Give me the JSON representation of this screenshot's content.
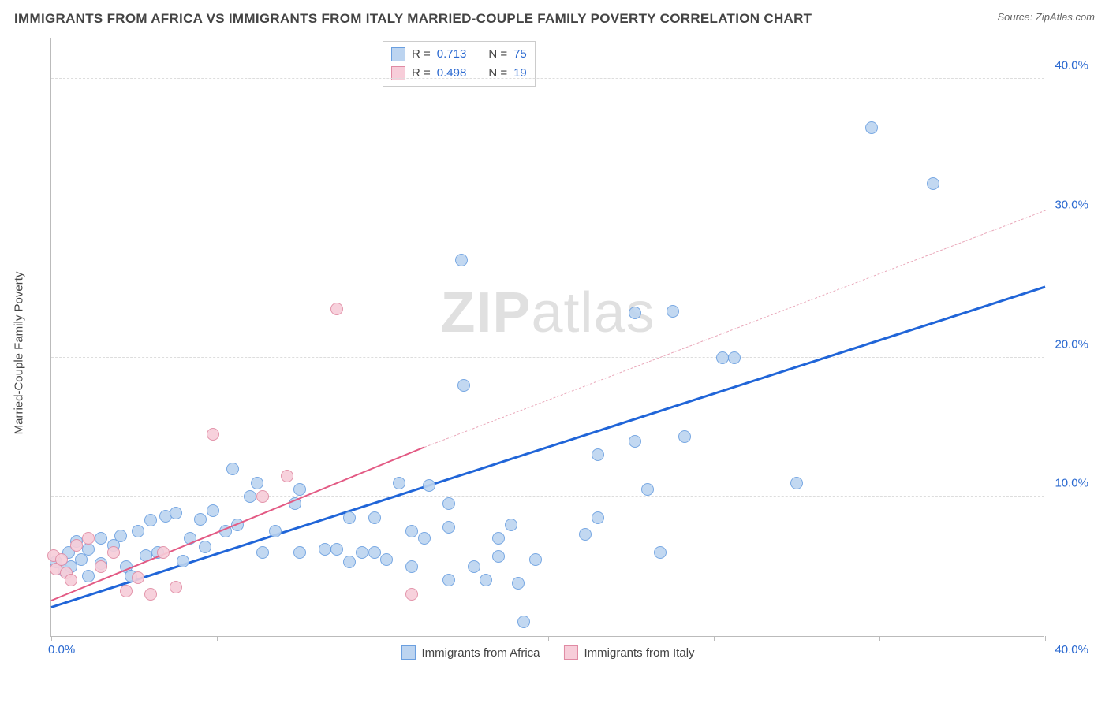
{
  "header": {
    "title": "IMMIGRANTS FROM AFRICA VS IMMIGRANTS FROM ITALY MARRIED-COUPLE FAMILY POVERTY CORRELATION CHART",
    "source": "Source: ZipAtlas.com"
  },
  "watermark": {
    "bold": "ZIP",
    "rest": "atlas"
  },
  "chart": {
    "type": "scatter",
    "ylabel": "Married-Couple Family Poverty",
    "xlim": [
      0,
      40
    ],
    "ylim": [
      0,
      43
    ],
    "y_gridlines": [
      10,
      20,
      30,
      40
    ],
    "y_tick_labels": [
      "10.0%",
      "20.0%",
      "30.0%",
      "40.0%"
    ],
    "x_tick_left": "0.0%",
    "x_tick_right": "40.0%",
    "x_minor_ticks": [
      0,
      6.67,
      13.33,
      20,
      26.67,
      33.33,
      40
    ],
    "background_color": "#ffffff",
    "grid_color": "#dddddd",
    "axis_color": "#bbbbbb",
    "tick_label_color": "#2968d0",
    "series": [
      {
        "name": "Immigrants from Africa",
        "color_fill": "#bcd4f0",
        "color_stroke": "#6a9fe0",
        "marker_radius": 8,
        "R": "0.713",
        "N": "75",
        "trend": {
          "x1": 0,
          "y1": 2.0,
          "x2": 40,
          "y2": 25.0,
          "color": "#2065d8",
          "width": 3,
          "dash": false
        },
        "points": [
          [
            0.2,
            5.3
          ],
          [
            0.5,
            4.7
          ],
          [
            0.7,
            6.0
          ],
          [
            0.8,
            5.0
          ],
          [
            1.0,
            6.8
          ],
          [
            1.2,
            5.5
          ],
          [
            1.5,
            6.2
          ],
          [
            1.5,
            4.3
          ],
          [
            2.0,
            7.0
          ],
          [
            2.0,
            5.2
          ],
          [
            2.5,
            6.5
          ],
          [
            2.8,
            7.2
          ],
          [
            3.0,
            5.0
          ],
          [
            3.2,
            4.3
          ],
          [
            3.5,
            7.5
          ],
          [
            3.8,
            5.8
          ],
          [
            4.0,
            8.3
          ],
          [
            4.3,
            6.0
          ],
          [
            4.6,
            8.6
          ],
          [
            5.0,
            8.8
          ],
          [
            5.3,
            5.4
          ],
          [
            5.6,
            7.0
          ],
          [
            6.0,
            8.4
          ],
          [
            6.2,
            6.4
          ],
          [
            6.5,
            9.0
          ],
          [
            7.0,
            7.5
          ],
          [
            7.3,
            12.0
          ],
          [
            7.5,
            8.0
          ],
          [
            8.0,
            10.0
          ],
          [
            8.3,
            11.0
          ],
          [
            8.5,
            6.0
          ],
          [
            9.0,
            7.5
          ],
          [
            9.8,
            9.5
          ],
          [
            10.0,
            10.5
          ],
          [
            10.0,
            6.0
          ],
          [
            11.0,
            6.2
          ],
          [
            11.5,
            6.2
          ],
          [
            12.0,
            8.5
          ],
          [
            12.0,
            5.3
          ],
          [
            12.5,
            6.0
          ],
          [
            13.0,
            8.5
          ],
          [
            13.0,
            6.0
          ],
          [
            13.5,
            5.5
          ],
          [
            14.0,
            11.0
          ],
          [
            14.5,
            5.0
          ],
          [
            14.5,
            7.5
          ],
          [
            15.0,
            7.0
          ],
          [
            15.2,
            10.8
          ],
          [
            16.0,
            4.0
          ],
          [
            16.0,
            7.8
          ],
          [
            16.0,
            9.5
          ],
          [
            16.5,
            27.0
          ],
          [
            16.6,
            18.0
          ],
          [
            17.0,
            5.0
          ],
          [
            17.5,
            4.0
          ],
          [
            18.0,
            5.7
          ],
          [
            18.0,
            7.0
          ],
          [
            18.5,
            8.0
          ],
          [
            18.8,
            3.8
          ],
          [
            19.0,
            1.0
          ],
          [
            19.5,
            5.5
          ],
          [
            21.5,
            7.3
          ],
          [
            22.0,
            8.5
          ],
          [
            22.0,
            13.0
          ],
          [
            23.5,
            23.2
          ],
          [
            23.5,
            14.0
          ],
          [
            24.0,
            10.5
          ],
          [
            24.5,
            6.0
          ],
          [
            25.0,
            23.3
          ],
          [
            25.5,
            14.3
          ],
          [
            27.0,
            20.0
          ],
          [
            27.5,
            20.0
          ],
          [
            30.0,
            11.0
          ],
          [
            33.0,
            36.5
          ],
          [
            35.5,
            32.5
          ]
        ]
      },
      {
        "name": "Immigrants from Italy",
        "color_fill": "#f7cdd9",
        "color_stroke": "#e08aa3",
        "marker_radius": 8,
        "R": "0.498",
        "N": "19",
        "trend": {
          "x1": 0,
          "y1": 2.5,
          "x2": 15,
          "y2": 13.5,
          "color": "#e35a84",
          "width": 2,
          "dash": false
        },
        "trend_ext": {
          "x1": 15,
          "y1": 13.5,
          "x2": 40,
          "y2": 30.5,
          "color": "#e9a7b9",
          "width": 1,
          "dash": true
        },
        "points": [
          [
            0.1,
            5.8
          ],
          [
            0.2,
            4.8
          ],
          [
            0.4,
            5.5
          ],
          [
            0.6,
            4.5
          ],
          [
            0.8,
            4.0
          ],
          [
            1.0,
            6.5
          ],
          [
            1.5,
            7.0
          ],
          [
            2.0,
            5.0
          ],
          [
            2.5,
            6.0
          ],
          [
            3.0,
            3.2
          ],
          [
            3.5,
            4.2
          ],
          [
            4.0,
            3.0
          ],
          [
            4.5,
            6.0
          ],
          [
            5.0,
            3.5
          ],
          [
            6.5,
            14.5
          ],
          [
            8.5,
            10.0
          ],
          [
            9.5,
            11.5
          ],
          [
            11.5,
            23.5
          ],
          [
            14.5,
            3.0
          ]
        ]
      }
    ],
    "legend_top": {
      "rows": [
        {
          "swatch_fill": "#bcd4f0",
          "swatch_stroke": "#6a9fe0",
          "r_label": "R =",
          "r_val": "0.713",
          "n_label": "N =",
          "n_val": "75"
        },
        {
          "swatch_fill": "#f7cdd9",
          "swatch_stroke": "#e08aa3",
          "r_label": "R =",
          "r_val": "0.498",
          "n_label": "N =",
          "n_val": "19"
        }
      ]
    },
    "legend_bottom": [
      {
        "swatch_fill": "#bcd4f0",
        "swatch_stroke": "#6a9fe0",
        "label": "Immigrants from Africa"
      },
      {
        "swatch_fill": "#f7cdd9",
        "swatch_stroke": "#e08aa3",
        "label": "Immigrants from Italy"
      }
    ]
  }
}
